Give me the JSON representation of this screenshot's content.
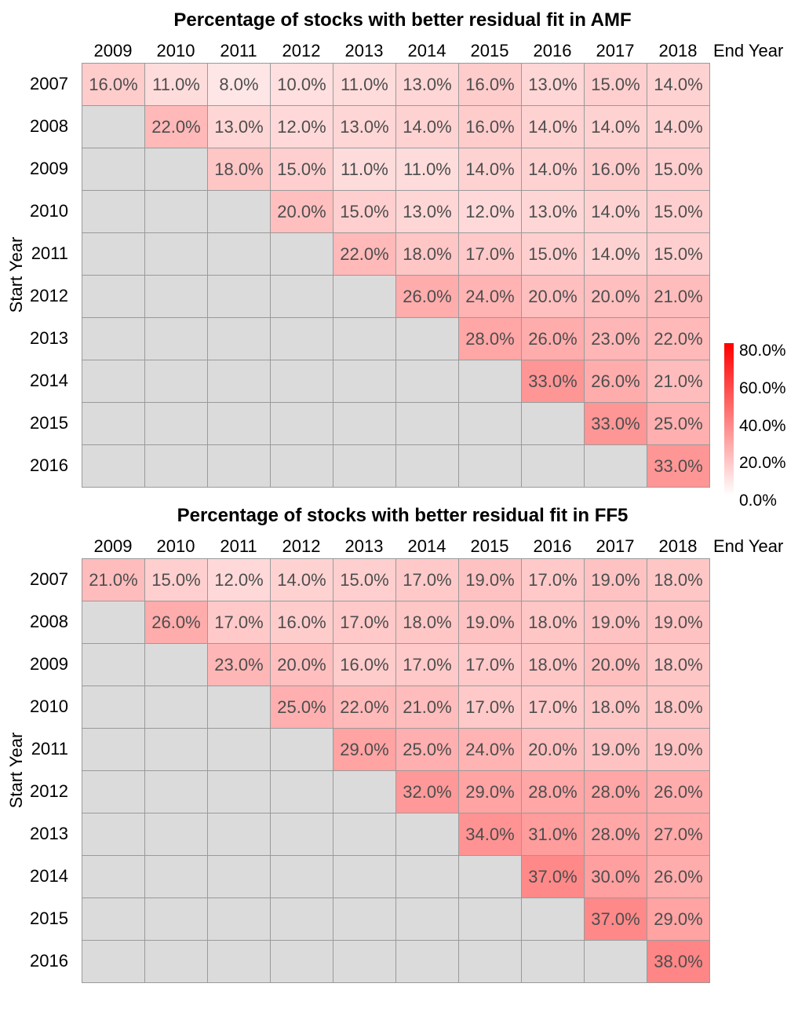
{
  "page": {
    "background": "#FFFFFF"
  },
  "styles": {
    "grid_border_color": "#9A9A9A",
    "cell_text_color": "#4D4D4D",
    "label_text_color": "#000000"
  },
  "colorbar": {
    "ticks": [
      "80.0%",
      "60.0%",
      "40.0%",
      "20.0%",
      "0.0%"
    ],
    "gradient_high": "#FF0000",
    "gradient_low": "#FFFFFF"
  },
  "chart_data": [
    {
      "type": "heatmap",
      "title": "Percentage of stocks with better residual fit in AMF",
      "xlabel": "End Year",
      "ylabel": "Start Year",
      "columns": [
        "2009",
        "2010",
        "2011",
        "2012",
        "2013",
        "2014",
        "2015",
        "2016",
        "2017",
        "2018"
      ],
      "rows": [
        "2007",
        "2008",
        "2009",
        "2010",
        "2011",
        "2012",
        "2013",
        "2014",
        "2015",
        "2016"
      ],
      "values": [
        [
          16,
          11,
          8,
          10,
          11,
          13,
          16,
          13,
          15,
          14
        ],
        [
          null,
          22,
          13,
          12,
          13,
          14,
          16,
          14,
          14,
          14
        ],
        [
          null,
          null,
          18,
          15,
          11,
          11,
          14,
          14,
          16,
          15
        ],
        [
          null,
          null,
          null,
          20,
          15,
          13,
          12,
          13,
          14,
          15
        ],
        [
          null,
          null,
          null,
          null,
          22,
          18,
          17,
          15,
          14,
          15
        ],
        [
          null,
          null,
          null,
          null,
          null,
          26,
          24,
          20,
          20,
          21
        ],
        [
          null,
          null,
          null,
          null,
          null,
          null,
          28,
          26,
          23,
          22
        ],
        [
          null,
          null,
          null,
          null,
          null,
          null,
          null,
          33,
          26,
          21
        ],
        [
          null,
          null,
          null,
          null,
          null,
          null,
          null,
          null,
          33,
          25
        ],
        [
          null,
          null,
          null,
          null,
          null,
          null,
          null,
          null,
          null,
          33
        ]
      ],
      "value_suffix": "%",
      "value_decimals": 1,
      "color_scale": {
        "min": 0,
        "max": 80,
        "low": "#FFFFFF",
        "high": "#FF0000"
      },
      "empty_color": "#DBDBDB"
    },
    {
      "type": "heatmap",
      "title": "Percentage of stocks with better residual fit in FF5",
      "xlabel": "End Year",
      "ylabel": "Start Year",
      "columns": [
        "2009",
        "2010",
        "2011",
        "2012",
        "2013",
        "2014",
        "2015",
        "2016",
        "2017",
        "2018"
      ],
      "rows": [
        "2007",
        "2008",
        "2009",
        "2010",
        "2011",
        "2012",
        "2013",
        "2014",
        "2015",
        "2016"
      ],
      "values": [
        [
          21,
          15,
          12,
          14,
          15,
          17,
          19,
          17,
          19,
          18
        ],
        [
          null,
          26,
          17,
          16,
          17,
          18,
          19,
          18,
          19,
          19
        ],
        [
          null,
          null,
          23,
          20,
          16,
          17,
          17,
          18,
          20,
          18
        ],
        [
          null,
          null,
          null,
          25,
          22,
          21,
          17,
          17,
          18,
          18
        ],
        [
          null,
          null,
          null,
          null,
          29,
          25,
          24,
          20,
          19,
          19
        ],
        [
          null,
          null,
          null,
          null,
          null,
          32,
          29,
          28,
          28,
          26
        ],
        [
          null,
          null,
          null,
          null,
          null,
          null,
          34,
          31,
          28,
          27
        ],
        [
          null,
          null,
          null,
          null,
          null,
          null,
          null,
          37,
          30,
          26
        ],
        [
          null,
          null,
          null,
          null,
          null,
          null,
          null,
          null,
          37,
          29
        ],
        [
          null,
          null,
          null,
          null,
          null,
          null,
          null,
          null,
          null,
          38
        ]
      ],
      "value_suffix": "%",
      "value_decimals": 1,
      "color_scale": {
        "min": 0,
        "max": 80,
        "low": "#FFFFFF",
        "high": "#FF0000"
      },
      "empty_color": "#DBDBDB"
    }
  ]
}
